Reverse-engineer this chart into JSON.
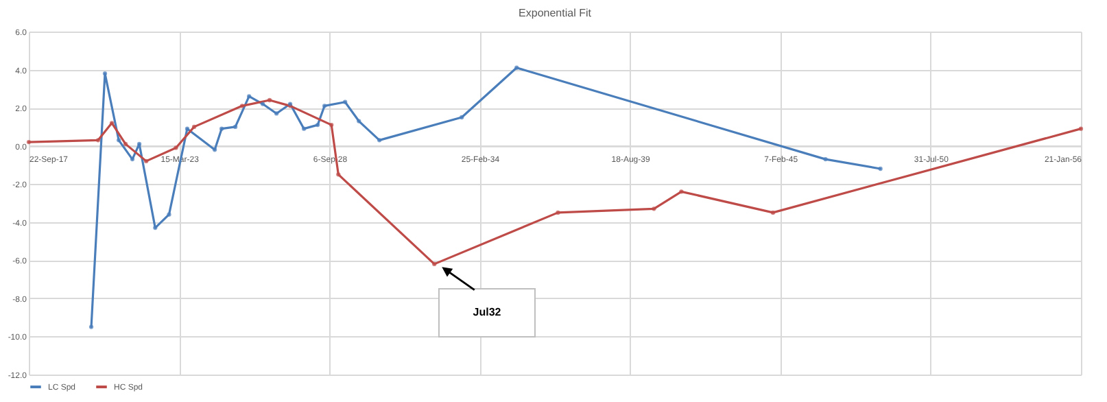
{
  "chart_data": {
    "type": "line",
    "title": "Exponential Fit",
    "xlim": [
      "2017-09-22",
      "2056-01-21"
    ],
    "xticks": [
      {
        "value": "2017-09-22",
        "label": "22-Sep-17"
      },
      {
        "value": "2023-03-15",
        "label": "15-Mar-23"
      },
      {
        "value": "2028-09-06",
        "label": "6-Sep-28"
      },
      {
        "value": "2034-02-25",
        "label": "25-Feb-34"
      },
      {
        "value": "2039-08-18",
        "label": "18-Aug-39"
      },
      {
        "value": "2045-02-07",
        "label": "7-Feb-45"
      },
      {
        "value": "2050-07-31",
        "label": "31-Jul-50"
      },
      {
        "value": "2056-01-21",
        "label": "21-Jan-56"
      }
    ],
    "ylim": [
      -12,
      6
    ],
    "yticks": [
      {
        "value": -12,
        "label": "-12.0"
      },
      {
        "value": -10,
        "label": "-10.0"
      },
      {
        "value": -8,
        "label": "-8.0"
      },
      {
        "value": -6,
        "label": "-6.0"
      },
      {
        "value": -4,
        "label": "-4.0"
      },
      {
        "value": -2,
        "label": "-2.0"
      },
      {
        "value": 0,
        "label": "0.0"
      },
      {
        "value": 2,
        "label": "2.0"
      },
      {
        "value": 4,
        "label": "4.0"
      },
      {
        "value": 6,
        "label": "6.0"
      }
    ],
    "grid": true,
    "legend": "bottom",
    "marker": "circle",
    "line_style": "solid",
    "series": [
      {
        "name": "LC Spd",
        "color": "#4a7ebb",
        "x": [
          "2020-01",
          "2020-07",
          "2021-01",
          "2021-07",
          "2021-10",
          "2022-05",
          "2022-11",
          "2023-07",
          "2024-07",
          "2024-10",
          "2025-04",
          "2025-10",
          "2026-04",
          "2026-10",
          "2027-04",
          "2027-10",
          "2028-04",
          "2028-07",
          "2029-04",
          "2029-10",
          "2030-07",
          "2033-07",
          "2035-07",
          "2046-10",
          "2048-10"
        ],
        "values": [
          -9.5,
          3.8,
          0.3,
          -0.7,
          0.1,
          -4.3,
          -3.6,
          0.9,
          -0.2,
          0.9,
          1.0,
          2.6,
          2.2,
          1.7,
          2.2,
          0.9,
          1.1,
          2.1,
          2.3,
          1.3,
          0.3,
          1.5,
          4.1,
          -0.7,
          -1.2
        ]
      },
      {
        "name": "HC Spd",
        "color": "#be4b48",
        "x": [
          "2017-09-22",
          "2020-04",
          "2020-10",
          "2021-04",
          "2022-01",
          "2023-02",
          "2023-10",
          "2025-07",
          "2026-07",
          "2027-04",
          "2028-10",
          "2029-01",
          "2032-07",
          "2037-01",
          "2040-07",
          "2041-07",
          "2044-11",
          "2056-01-21"
        ],
        "values": [
          0.2,
          0.3,
          1.2,
          0.1,
          -0.8,
          -0.1,
          1.0,
          2.1,
          2.4,
          2.1,
          1.1,
          -1.5,
          -6.2,
          -3.5,
          -3.3,
          -2.4,
          -3.5,
          0.9
        ]
      }
    ],
    "annotations": [
      "Jul32"
    ]
  }
}
